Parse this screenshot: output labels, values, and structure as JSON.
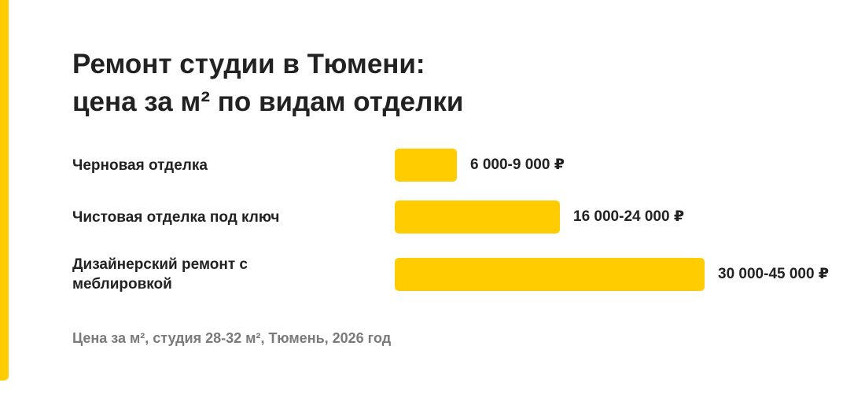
{
  "title_lines": [
    "Ремонт студии в Тюмени:",
    "цена за м² по видам отделки"
  ],
  "footnote": "Цена за м², студия 28-32 м², Тюмень, 2026 год",
  "colors": {
    "accent": "#FFCC00",
    "text": "#222222",
    "muted": "#7a7a7a"
  },
  "chart_data": {
    "type": "bar",
    "orientation": "horizontal",
    "unit": "₽",
    "categories": [
      "Черновая отделка",
      "Чистовая отделка под ключ",
      "Дизайнерский ремонт с меблировкой"
    ],
    "value_labels": [
      "6 000-9 000 ₽",
      "16 000-24 000 ₽",
      "30 000-45 000 ₽"
    ],
    "values": [
      [
        6000,
        9000
      ],
      [
        16000,
        24000
      ],
      [
        30000,
        45000
      ]
    ],
    "grid": false,
    "legend": "none"
  }
}
